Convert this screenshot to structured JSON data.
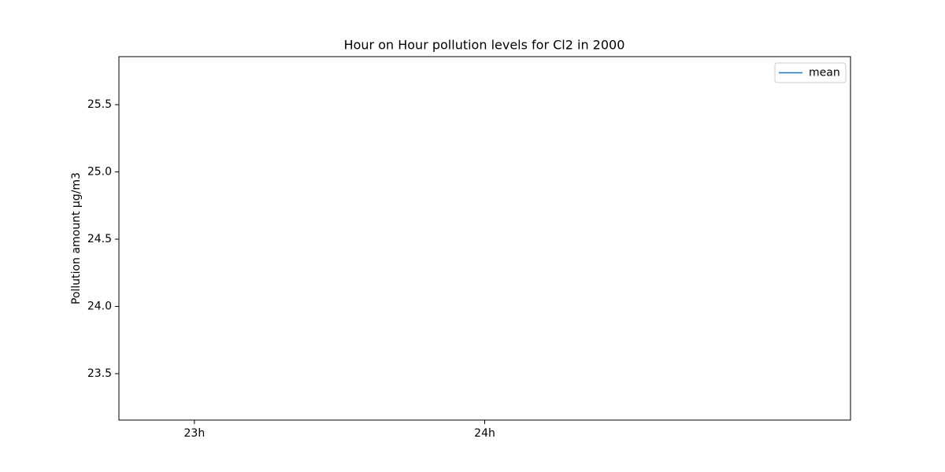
{
  "chart_data": {
    "type": "line",
    "title": "Hour on Hour pollution levels for Cl2 in 2000",
    "ylabel": "Pollution amount µg/m3",
    "categories": [
      "23h",
      "24h"
    ],
    "series": [
      {
        "name": "mean",
        "color": "#1f77b4",
        "values": [
          null,
          null
        ]
      }
    ],
    "xlim": [
      -0.26,
      2.26
    ],
    "ylim": [
      23.155,
      25.857
    ],
    "yticks": [
      23.5,
      {
        "value": 24,
        "label": "24.0"
      },
      24.5,
      {
        "value": 25,
        "label": "25.0"
      },
      25.5
    ],
    "grid": false,
    "legend": "upper right"
  }
}
